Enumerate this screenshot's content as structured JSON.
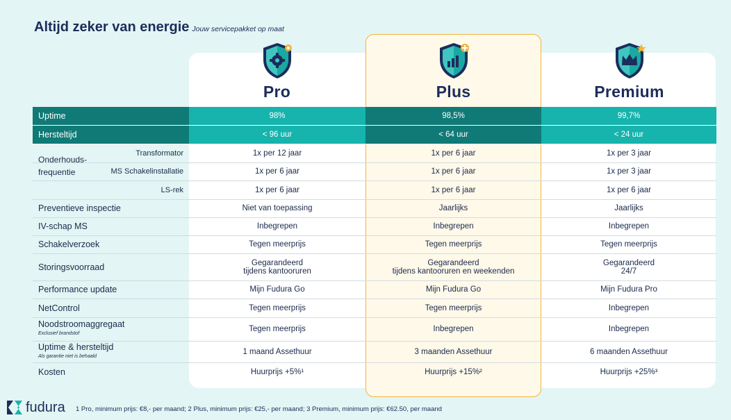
{
  "header": {
    "title": "Altijd zeker van energie",
    "subtitle": "Jouw servicepakket op maat"
  },
  "plans": [
    {
      "name": "Pro",
      "icon": "gear-shield-icon"
    },
    {
      "name": "Plus",
      "icon": "chart-shield-icon"
    },
    {
      "name": "Premium",
      "icon": "crown-shield-icon"
    }
  ],
  "rows": {
    "uptime": {
      "label": "Uptime",
      "values": [
        "98%",
        "98,5%",
        "99,7%"
      ]
    },
    "hersteltijd": {
      "label": "Hersteltijd",
      "values": [
        "< 96 uur",
        "< 64 uur",
        "< 24 uur"
      ]
    },
    "onderhoud": {
      "label_line1": "Onderhouds-",
      "label_line2": "frequentie",
      "sub": [
        {
          "label": "Transformator",
          "values": [
            "1x per 12 jaar",
            "1x per 6 jaar",
            "1x per 3 jaar"
          ]
        },
        {
          "label": "MS Schakelinstallatie",
          "values": [
            "1x per 6 jaar",
            "1x per 6 jaar",
            "1x per 3 jaar"
          ]
        },
        {
          "label": "LS-rek",
          "values": [
            "1x per 6 jaar",
            "1x per 6 jaar",
            "1x per 6 jaar"
          ]
        }
      ]
    },
    "preventieve": {
      "label": "Preventieve inspectie",
      "values": [
        "Niet van toepassing",
        "Jaarlijks",
        "Jaarlijks"
      ]
    },
    "ivschap": {
      "label": "IV-schap MS",
      "values": [
        "Inbegrepen",
        "Inbegrepen",
        "Inbegrepen"
      ]
    },
    "schakel": {
      "label": "Schakelverzoek",
      "values": [
        "Tegen meerprijs",
        "Tegen meerprijs",
        "Tegen meerprijs"
      ]
    },
    "storing": {
      "label": "Storingsvoorraad",
      "values": [
        {
          "line1": "Gegarandeerd",
          "line2": "tijdens kantooruren"
        },
        {
          "line1": "Gegarandeerd",
          "line2": "tijdens kantooruren en weekenden"
        },
        {
          "line1": "Gegarandeerd",
          "line2": "24/7"
        }
      ]
    },
    "performance": {
      "label": "Performance update",
      "values": [
        "Mijn Fudura Go",
        "Mijn Fudura Go",
        "Mijn Fudura Pro"
      ]
    },
    "netcontrol": {
      "label": "NetControl",
      "values": [
        "Tegen meerprijs",
        "Tegen meerprijs",
        "Inbegrepen"
      ]
    },
    "nood": {
      "label": "Noodstroomaggregaat",
      "note": "Exclusief brandstof",
      "values": [
        "Tegen meerprijs",
        "Inbegrepen",
        "Inbegrepen"
      ]
    },
    "uptimeherstel": {
      "label": "Uptime & hersteltijd",
      "note": "Als garantie niet is behaald",
      "values": [
        "1 maand Assethuur",
        "3 maanden Assethuur",
        "6 maanden Assethuur"
      ]
    },
    "kosten": {
      "label": "Kosten",
      "values": [
        "Huurprijs +5%¹",
        "Huurprijs +15%²",
        "Huurprijs +25%³"
      ]
    }
  },
  "footer": {
    "brand": "fudura",
    "note": "1 Pro, minimum prijs: €8,- per maand; 2 Plus, minimum prijs: €25,- per maand; 3 Premium, minimum prijs: €62.50, per maand"
  },
  "colors": {
    "navy": "#1c2c5b",
    "teal": "#17b3ad",
    "teal_dark": "#0f7a76",
    "gold": "#f2b43a"
  }
}
